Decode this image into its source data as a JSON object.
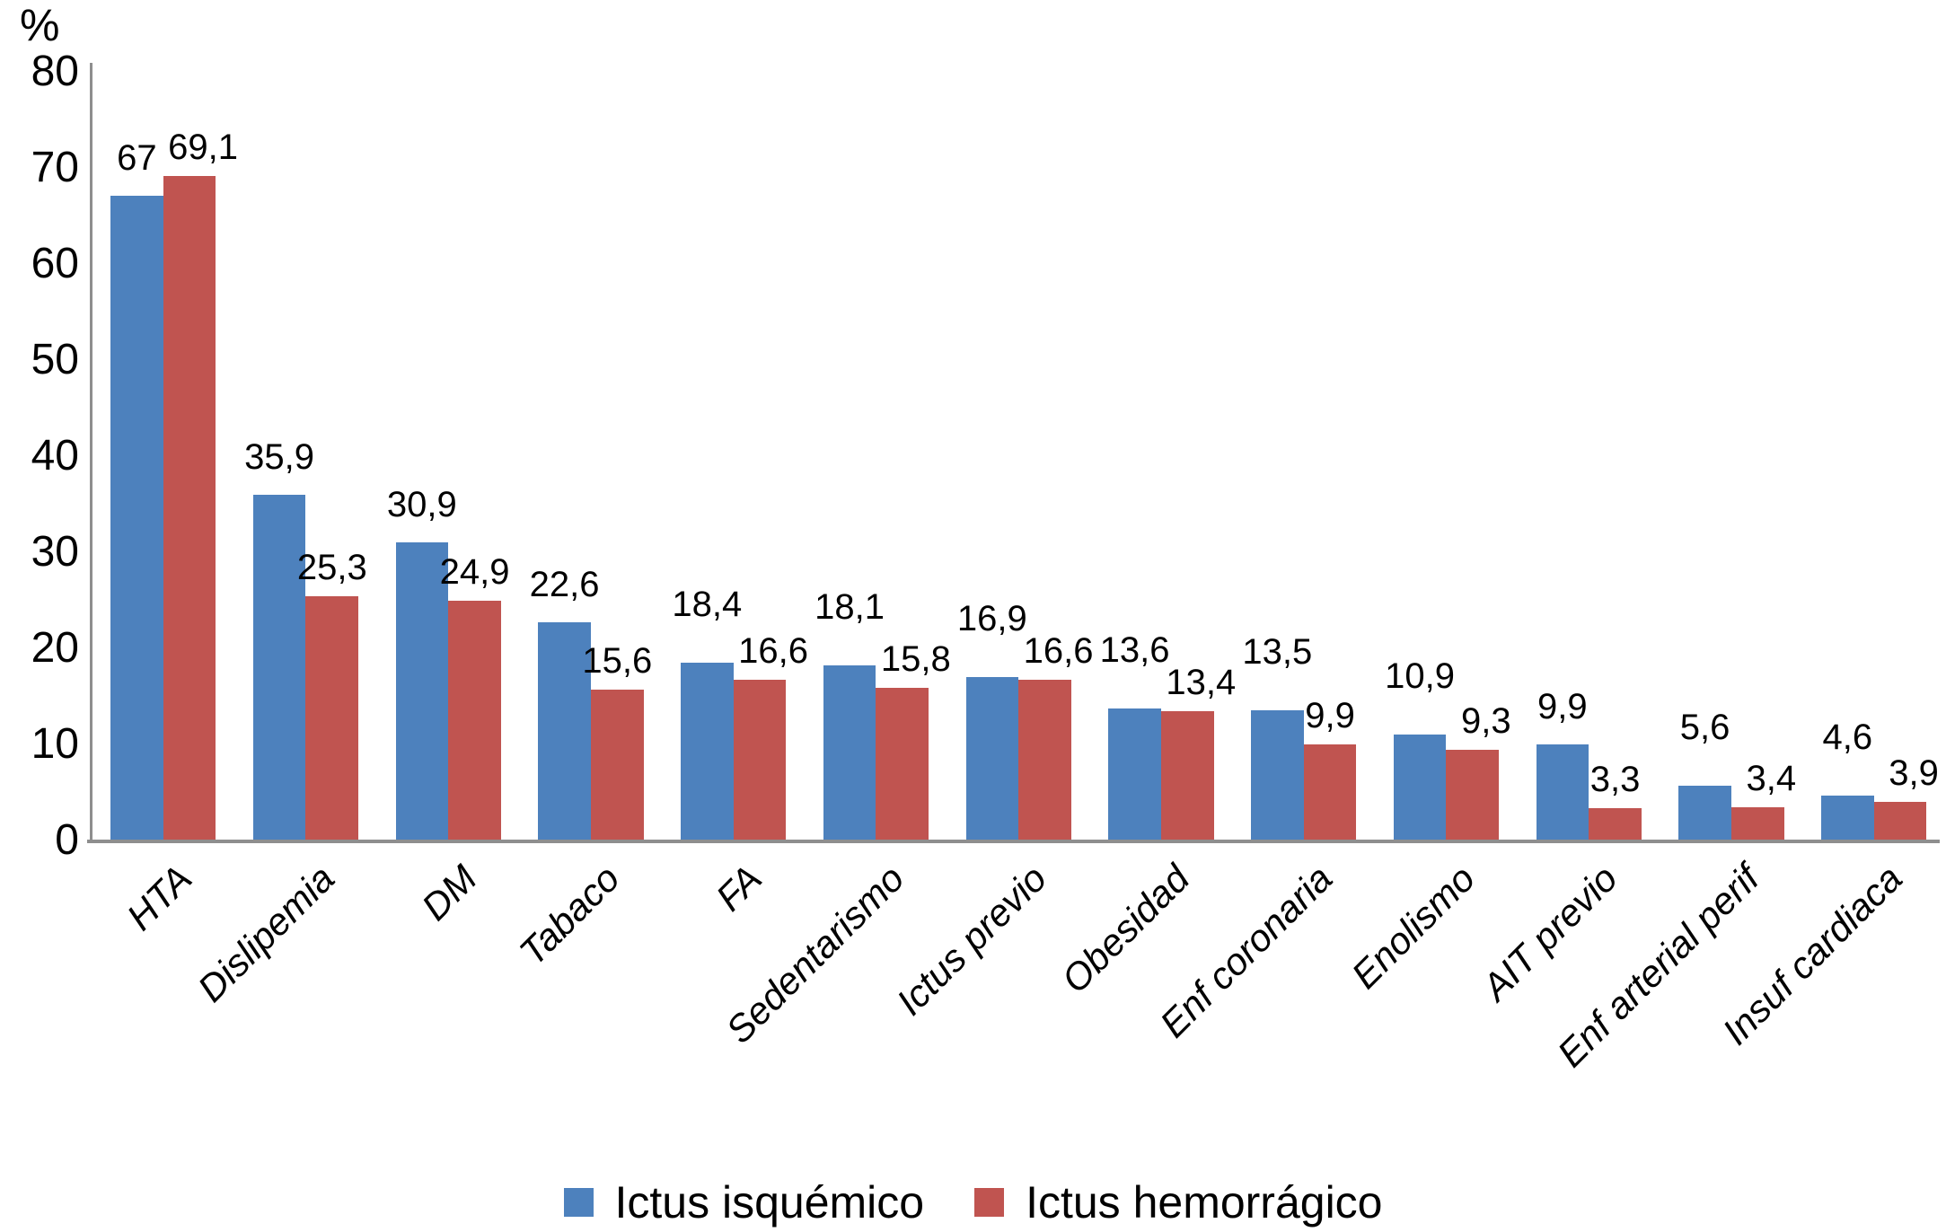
{
  "chart_data": {
    "type": "bar",
    "ylabel": "%",
    "ylim": [
      0,
      80
    ],
    "yticks": [
      0,
      10,
      20,
      30,
      40,
      50,
      60,
      70,
      80
    ],
    "grid": false,
    "legend_position": "bottom",
    "decimal_separator": ",",
    "x_label_rotation_deg": 45,
    "categories": [
      "HTA",
      "Dislipemia",
      "DM",
      "Tabaco",
      "FA",
      "Sedentarismo",
      "Ictus previo",
      "Obesidad",
      "Enf coronaria",
      "Enolismo",
      "AIT previo",
      "Enf arterial perif",
      "Insuf cardiaca"
    ],
    "series": [
      {
        "name": "Ictus isquémico",
        "color": "#4d81bd",
        "values": [
          67,
          35.9,
          30.9,
          22.6,
          18.4,
          18.1,
          16.9,
          13.6,
          13.5,
          10.9,
          9.9,
          5.6,
          4.6
        ],
        "value_labels": [
          "67",
          "35,9",
          "30,9",
          "22,6",
          "18,4",
          "18,1",
          "16,9",
          "13,6",
          "13,5",
          "10,9",
          "9,9",
          "5,6",
          "4,6"
        ]
      },
      {
        "name": "Ictus hemorrágico",
        "color": "#c05450",
        "values": [
          69.1,
          25.3,
          24.9,
          15.6,
          16.6,
          15.8,
          16.6,
          13.4,
          9.9,
          9.3,
          3.3,
          3.4,
          3.9
        ],
        "value_labels": [
          "69,1",
          "25,3",
          "24,9",
          "15,6",
          "16,6",
          "15,8",
          "16,6",
          "13,4",
          "9,9",
          "9,3",
          "3,3",
          "3,4",
          "3,9"
        ]
      }
    ],
    "axis_color": "#8e8e8e"
  }
}
